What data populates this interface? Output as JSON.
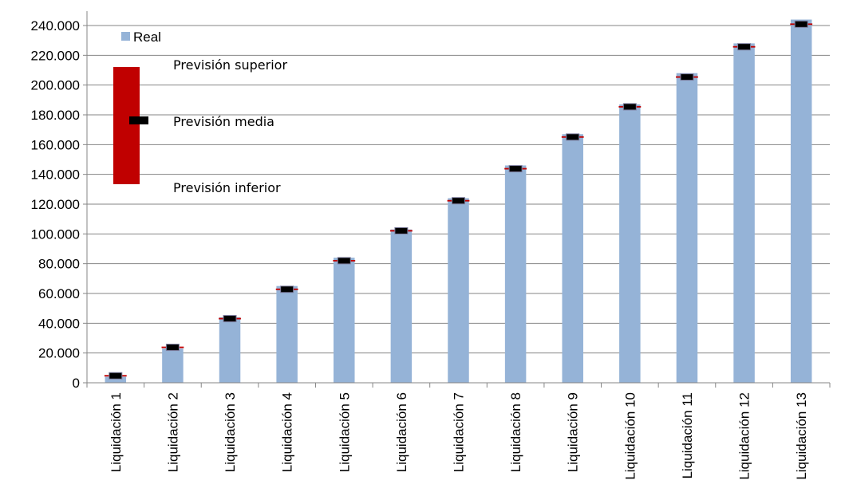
{
  "chart_data": {
    "type": "bar",
    "title": "",
    "xlabel": "",
    "ylabel": "",
    "ylim": [
      0,
      240000
    ],
    "yticks": [
      0,
      20000,
      40000,
      60000,
      80000,
      100000,
      120000,
      140000,
      160000,
      180000,
      200000,
      220000,
      240000
    ],
    "ytick_labels": [
      "0",
      "20.000",
      "40.000",
      "60.000",
      "80.000",
      "100.000",
      "120.000",
      "140.000",
      "160.000",
      "180.000",
      "200.000",
      "220.000",
      "240.000"
    ],
    "grid": "horizontal",
    "categories": [
      "Liquidación 1",
      "Liquidación 2",
      "Liquidación 3",
      "Liquidación 4",
      "Liquidación 5",
      "Liquidación 6",
      "Liquidación 7",
      "Liquidación 8",
      "Liquidación 9",
      "Liquidación 10",
      "Liquidación 11",
      "Liquidación 12",
      "Liquidación 13"
    ],
    "series": [
      {
        "name": "Real",
        "kind": "bar",
        "color": "#95b3d7",
        "values": [
          4000,
          23000,
          44000,
          65000,
          84000,
          103000,
          124000,
          146000,
          167000,
          187000,
          208000,
          228000,
          244000
        ]
      },
      {
        "name": "",
        "kind": "range-bar",
        "color": "#c00000",
        "low": [
          4200,
          23300,
          42600,
          62300,
          81500,
          101600,
          121800,
          143300,
          164600,
          184900,
          204900,
          225200,
          240400
        ],
        "high": [
          5200,
          24300,
          43600,
          63300,
          82500,
          102600,
          122800,
          144300,
          165600,
          185900,
          205900,
          226200,
          241400
        ]
      },
      {
        "name": "",
        "kind": "marker",
        "color": "#000000",
        "values": [
          4700,
          23800,
          43100,
          62800,
          82000,
          102100,
          122300,
          143800,
          165100,
          185400,
          205400,
          225700,
          240900
        ]
      }
    ],
    "legend": {
      "position": "top-left",
      "entries": [
        {
          "label": "Real",
          "color": "#95b3d7"
        }
      ]
    },
    "key": {
      "color_band": "#c00000",
      "color_marker": "#000000",
      "labels": {
        "upper": "Previsión superior",
        "mid": "Previsión media",
        "lower": "Previsión inferior"
      }
    }
  }
}
